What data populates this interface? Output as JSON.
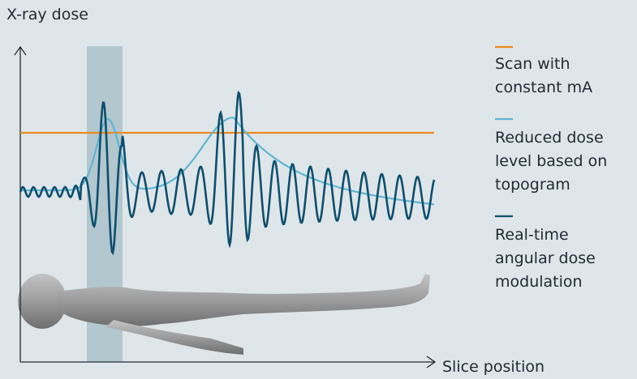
{
  "axes": {
    "y_label": "X-ray dose",
    "x_label": "Slice position"
  },
  "legend": [
    {
      "lines": [
        "Scan with",
        "constant mA"
      ]
    },
    {
      "lines": [
        "Reduced dose",
        "level based on",
        "topogram"
      ]
    },
    {
      "lines": [
        "Real-time",
        "angular dose",
        "modulation"
      ]
    }
  ]
}
